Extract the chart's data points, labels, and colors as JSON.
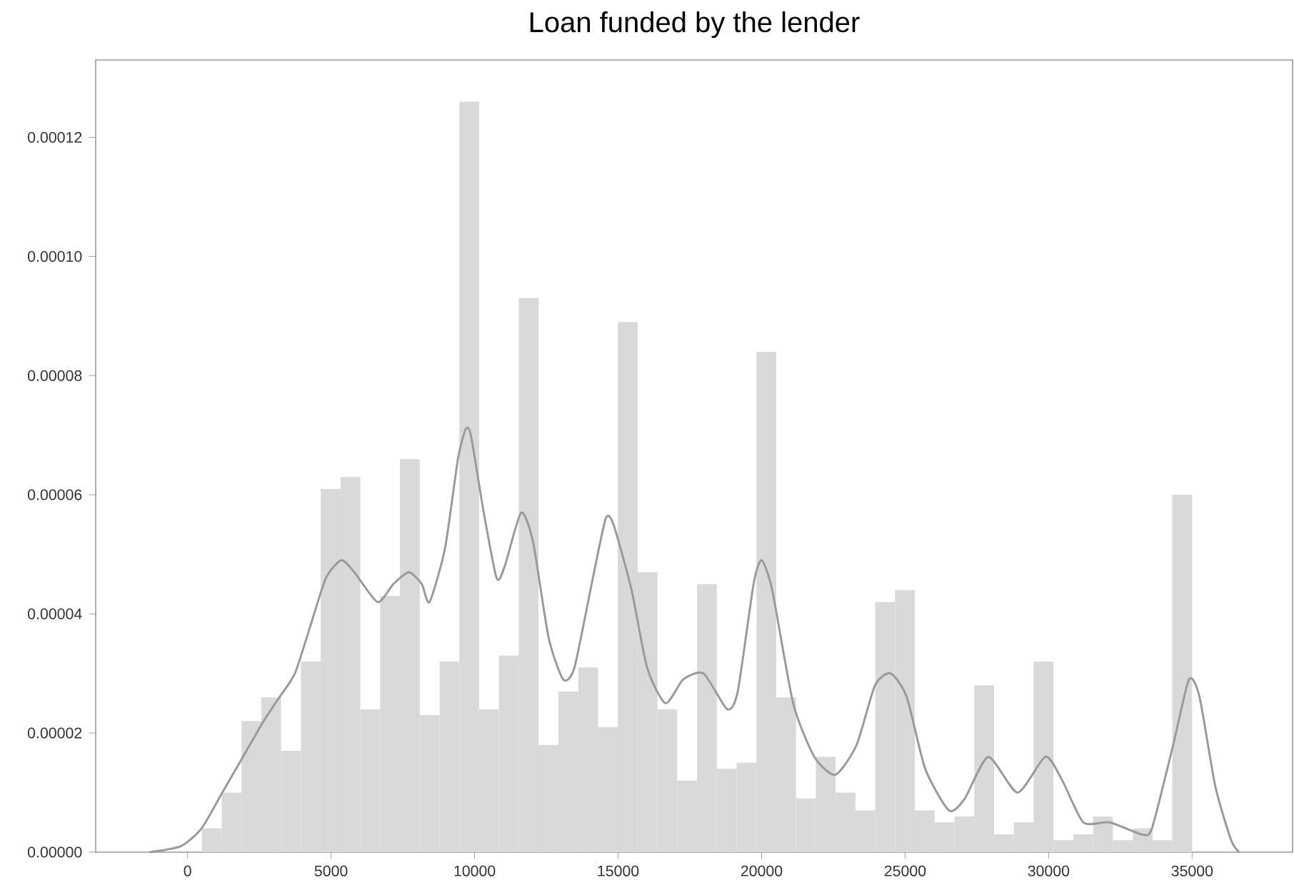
{
  "chart_data": {
    "type": "histogram",
    "title": "Loan funded by the lender",
    "xlim": [
      -3200,
      38500
    ],
    "ylim": [
      0,
      0.000133
    ],
    "xticks": [
      0,
      5000,
      10000,
      15000,
      20000,
      25000,
      30000,
      35000
    ],
    "yticks": [
      {
        "value": 0,
        "label": "0.00000"
      },
      {
        "value": 2e-05,
        "label": "0.00002"
      },
      {
        "value": 4e-05,
        "label": "0.00004"
      },
      {
        "value": 6e-05,
        "label": "0.00006"
      },
      {
        "value": 8e-05,
        "label": "0.00008"
      },
      {
        "value": 0.0001,
        "label": "0.00010"
      },
      {
        "value": 0.00012,
        "label": "0.00012"
      }
    ],
    "series": [
      {
        "color": "#d9d9d9",
        "bins": [
          500,
          1190,
          1880,
          2570,
          3260,
          3950,
          4640,
          5330,
          6020,
          6710,
          7400,
          8090,
          8780,
          9470,
          10160,
          10850,
          11540,
          12230,
          12920,
          13610,
          14300,
          14990,
          15680,
          16370,
          17060,
          17750,
          18440,
          19130,
          19820,
          20510,
          21200,
          21890,
          22580,
          23270,
          23960,
          24650,
          25340,
          26030,
          26720,
          27410,
          28100,
          28790,
          29480,
          30170,
          30860,
          31550,
          32240,
          32930,
          33620,
          34310,
          35000
        ],
        "values": [
          4e-06,
          1e-05,
          2.2e-05,
          2.6e-05,
          1.7e-05,
          3.2e-05,
          6.1e-05,
          6.3e-05,
          2.4e-05,
          4.3e-05,
          6.6e-05,
          2.3e-05,
          3.2e-05,
          0.000126,
          2.4e-05,
          3.3e-05,
          9.3e-05,
          1.8e-05,
          2.7e-05,
          3.1e-05,
          2.1e-05,
          8.9e-05,
          4.7e-05,
          2.4e-05,
          1.2e-05,
          4.5e-05,
          1.4e-05,
          1.5e-05,
          8.4e-05,
          2.6e-05,
          9e-06,
          1.6e-05,
          1e-05,
          7e-06,
          4.2e-05,
          4.4e-05,
          7e-06,
          5e-06,
          6e-06,
          2.8e-05,
          3e-06,
          5e-06,
          3.2e-05,
          2e-06,
          3e-06,
          6e-06,
          2e-06,
          4e-06,
          2e-06,
          6e-05
        ]
      },
      {
        "type": "line",
        "color": "#999999",
        "x": [
          -1320,
          -235,
          490,
          1210,
          1930,
          2650,
          3200,
          3740,
          4280,
          4820,
          5360,
          5810,
          6620,
          7170,
          7710,
          8160,
          8430,
          8970,
          9420,
          9690,
          9870,
          10320,
          10770,
          11050,
          11620,
          12040,
          12580,
          13090,
          13480,
          14120,
          14570,
          14840,
          15470,
          16010,
          16650,
          17270,
          17980,
          18800,
          19170,
          19720,
          20000,
          20370,
          21100,
          21840,
          22570,
          23310,
          23950,
          24500,
          25060,
          25700,
          26530,
          27080,
          27900,
          28920,
          29890,
          30480,
          31210,
          32130,
          33240,
          33600,
          34340,
          34890,
          35260,
          35810,
          36360,
          36640
        ],
        "values": [
          0,
          1e-06,
          4e-06,
          1e-05,
          1.6e-05,
          2.2e-05,
          2.6e-05,
          3e-05,
          3.8e-05,
          4.6e-05,
          4.9e-05,
          4.7e-05,
          4.2e-05,
          4.5e-05,
          4.7e-05,
          4.5e-05,
          4.2e-05,
          5.1e-05,
          6.6e-05,
          7.1e-05,
          7e-05,
          5.7e-05,
          4.6e-05,
          4.8e-05,
          5.7e-05,
          5.2e-05,
          3.6e-05,
          2.9e-05,
          3.1e-05,
          4.6e-05,
          5.6e-05,
          5.5e-05,
          4.4e-05,
          3.1e-05,
          2.5e-05,
          2.9e-05,
          3e-05,
          2.4e-05,
          2.7e-05,
          4.5e-05,
          4.9e-05,
          4.4e-05,
          2.5e-05,
          1.6e-05,
          1.3e-05,
          1.8e-05,
          2.8e-05,
          3e-05,
          2.6e-05,
          1.4e-05,
          7e-06,
          9e-06,
          1.6e-05,
          1e-05,
          1.6e-05,
          1.2e-05,
          5e-06,
          5e-06,
          3e-06,
          4e-06,
          1.8e-05,
          2.9e-05,
          2.6e-05,
          1.1e-05,
          2e-06,
          0
        ]
      }
    ]
  }
}
